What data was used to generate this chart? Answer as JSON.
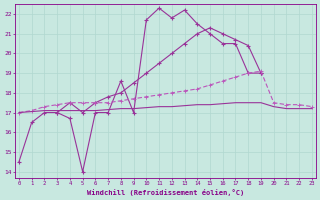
{
  "x": [
    0,
    1,
    2,
    3,
    4,
    5,
    6,
    7,
    8,
    9,
    10,
    11,
    12,
    13,
    14,
    15,
    16,
    17,
    18,
    19,
    20,
    21,
    22,
    23
  ],
  "line_wavy": [
    14.5,
    16.5,
    17.0,
    17.0,
    16.7,
    14.0,
    17.0,
    17.0,
    18.6,
    17.0,
    21.7,
    22.3,
    21.8,
    22.2,
    21.5,
    21.0,
    20.5,
    20.5,
    19.0,
    19.0,
    null,
    null,
    null,
    null
  ],
  "line_diag": [
    null,
    null,
    null,
    17.0,
    17.5,
    17.0,
    17.5,
    17.8,
    18.0,
    18.5,
    19.0,
    19.5,
    20.0,
    20.5,
    21.0,
    21.3,
    21.0,
    20.7,
    20.4,
    19.0,
    null,
    null,
    null,
    null
  ],
  "line_dashed": [
    17.0,
    17.1,
    17.3,
    17.4,
    17.5,
    17.5,
    17.5,
    17.5,
    17.6,
    17.7,
    17.8,
    17.9,
    18.0,
    18.1,
    18.2,
    18.4,
    18.6,
    18.8,
    19.0,
    19.1,
    17.5,
    17.4,
    17.4,
    17.3
  ],
  "line_flat": [
    17.0,
    17.05,
    17.1,
    17.1,
    17.1,
    17.1,
    17.1,
    17.15,
    17.2,
    17.2,
    17.25,
    17.3,
    17.3,
    17.35,
    17.4,
    17.4,
    17.45,
    17.5,
    17.5,
    17.5,
    17.3,
    17.2,
    17.2,
    17.2
  ],
  "bg_color": "#c8e8e0",
  "grid_color": "#b0d8d0",
  "line_color_wavy": "#993399",
  "line_color_diag": "#993399",
  "line_color_dashed": "#bb55bb",
  "line_color_flat": "#993399",
  "xlabel": "Windchill (Refroidissement éolien,°C)",
  "yticks": [
    14,
    15,
    16,
    17,
    18,
    19,
    20,
    21,
    22
  ],
  "xticks": [
    0,
    1,
    2,
    3,
    4,
    5,
    6,
    7,
    8,
    9,
    10,
    11,
    12,
    13,
    14,
    15,
    16,
    17,
    18,
    19,
    20,
    21,
    22,
    23
  ],
  "xlim": [
    -0.3,
    23.3
  ],
  "ylim": [
    13.7,
    22.5
  ]
}
